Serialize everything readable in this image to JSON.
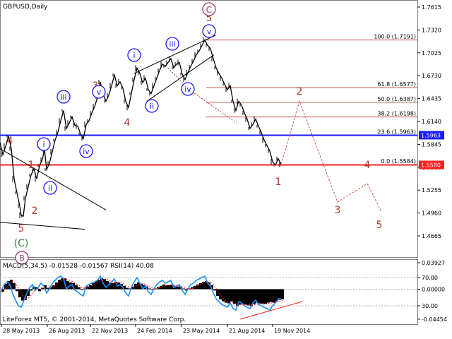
{
  "chart_data": [
    {
      "type": "line",
      "symbol_label": "GBPUSD,Daily",
      "price_axis": {
        "ticks": [
          "1.7615",
          "1.7320",
          "1.7025",
          "1.6730",
          "1.6435",
          "1.6140",
          "1.5845",
          "1.5550",
          "1.5255",
          "1.4960",
          "1.4665"
        ],
        "ylim": [
          1.444,
          1.775
        ]
      },
      "current_price_tags": [
        {
          "value": "1.5963",
          "color": "#1a1aff"
        },
        {
          "value": "1.5580",
          "color": "#ff2020"
        }
      ],
      "fibonacci_levels": [
        {
          "label": "100.0 (1.7191)",
          "price": 1.7191
        },
        {
          "label": "61.8 (1.6577)",
          "price": 1.6577
        },
        {
          "label": "50.0 (1.6387)",
          "price": 1.6387
        },
        {
          "label": "38.2 (1.6198)",
          "price": 1.6198
        },
        {
          "label": "23.6 (1.5963)",
          "price": 1.5963
        },
        {
          "label": "0.0 (1.5584)",
          "price": 1.5584
        }
      ],
      "wave_labels_primary": [
        {
          "text": "C",
          "style": "circled",
          "color": "#993366"
        },
        {
          "text": "(C)",
          "style": "plain",
          "color": "#2e8b2e"
        },
        {
          "text": "B",
          "style": "circled",
          "color": "#993366"
        }
      ],
      "wave_labels_intermediate": [
        "4",
        "1",
        "5",
        "2",
        "3",
        "5",
        "1",
        "2",
        "3",
        "4",
        "5"
      ],
      "wave_labels_minor": [
        "i",
        "ii",
        "iii",
        "iv",
        "v",
        "i",
        "ii",
        "iii",
        "iv",
        "v"
      ],
      "price_path": [
        [
          0,
          1.587
        ],
        [
          4,
          1.571
        ],
        [
          8,
          1.582
        ],
        [
          12,
          1.595
        ],
        [
          16,
          1.579
        ],
        [
          20,
          1.54
        ],
        [
          24,
          1.522
        ],
        [
          28,
          1.505
        ],
        [
          30,
          1.493
        ],
        [
          33,
          1.492
        ],
        [
          36,
          1.515
        ],
        [
          40,
          1.53
        ],
        [
          44,
          1.545
        ],
        [
          48,
          1.553
        ],
        [
          52,
          1.54
        ],
        [
          56,
          1.557
        ],
        [
          60,
          1.565
        ],
        [
          63,
          1.578
        ],
        [
          66,
          1.552
        ],
        [
          70,
          1.56
        ],
        [
          74,
          1.575
        ],
        [
          78,
          1.59
        ],
        [
          82,
          1.6
        ],
        [
          86,
          1.615
        ],
        [
          90,
          1.628
        ],
        [
          94,
          1.605
        ],
        [
          98,
          1.612
        ],
        [
          102,
          1.62
        ],
        [
          106,
          1.609
        ],
        [
          110,
          1.608
        ],
        [
          114,
          1.598
        ],
        [
          118,
          1.592
        ],
        [
          122,
          1.61
        ],
        [
          126,
          1.615
        ],
        [
          130,
          1.625
        ],
        [
          134,
          1.633
        ],
        [
          138,
          1.645
        ],
        [
          142,
          1.665
        ],
        [
          146,
          1.65
        ],
        [
          150,
          1.64
        ],
        [
          154,
          1.648
        ],
        [
          158,
          1.66
        ],
        [
          162,
          1.674
        ],
        [
          166,
          1.66
        ],
        [
          170,
          1.665
        ],
        [
          174,
          1.657
        ],
        [
          178,
          1.64
        ],
        [
          182,
          1.632
        ],
        [
          186,
          1.65
        ],
        [
          190,
          1.668
        ],
        [
          194,
          1.683
        ],
        [
          198,
          1.676
        ],
        [
          202,
          1.664
        ],
        [
          206,
          1.67
        ],
        [
          210,
          1.655
        ],
        [
          214,
          1.65
        ],
        [
          218,
          1.66
        ],
        [
          222,
          1.67
        ],
        [
          226,
          1.68
        ],
        [
          230,
          1.688
        ],
        [
          234,
          1.685
        ],
        [
          238,
          1.69
        ],
        [
          242,
          1.695
        ],
        [
          246,
          1.683
        ],
        [
          250,
          1.688
        ],
        [
          254,
          1.69
        ],
        [
          258,
          1.675
        ],
        [
          262,
          1.668
        ],
        [
          266,
          1.677
        ],
        [
          270,
          1.685
        ],
        [
          274,
          1.692
        ],
        [
          278,
          1.7
        ],
        [
          282,
          1.705
        ],
        [
          286,
          1.712
        ],
        [
          290,
          1.719
        ],
        [
          294,
          1.712
        ],
        [
          298,
          1.708
        ],
        [
          302,
          1.695
        ],
        [
          306,
          1.683
        ],
        [
          310,
          1.676
        ],
        [
          314,
          1.67
        ],
        [
          318,
          1.662
        ],
        [
          322,
          1.655
        ],
        [
          326,
          1.66
        ],
        [
          330,
          1.64
        ],
        [
          334,
          1.628
        ],
        [
          338,
          1.64
        ],
        [
          342,
          1.635
        ],
        [
          346,
          1.625
        ],
        [
          350,
          1.617
        ],
        [
          354,
          1.605
        ],
        [
          358,
          1.61
        ],
        [
          362,
          1.617
        ],
        [
          366,
          1.608
        ],
        [
          370,
          1.6
        ],
        [
          374,
          1.59
        ],
        [
          378,
          1.583
        ],
        [
          382,
          1.576
        ],
        [
          386,
          1.562
        ],
        [
          390,
          1.558
        ],
        [
          394,
          1.566
        ],
        [
          398,
          1.559
        ]
      ],
      "projection_path": [
        [
          398,
          1.559
        ],
        [
          424,
          1.64
        ],
        [
          478,
          1.51
        ],
        [
          520,
          1.534
        ],
        [
          540,
          1.498
        ]
      ]
    },
    {
      "type": "line",
      "indicator_label": "MACD(5,34,5) -0.01528 -0.01567 RSI(14) 40.08",
      "axis_ticks": [
        "0.03927",
        "70.00",
        "0.00000",
        "30.00",
        "-0.04454"
      ],
      "macd_histogram": [
        [
          2,
          -0.004
        ],
        [
          6,
          0.008
        ],
        [
          10,
          0.012
        ],
        [
          14,
          0.014
        ],
        [
          18,
          0.009
        ],
        [
          22,
          -0.003
        ],
        [
          26,
          -0.012
        ],
        [
          30,
          -0.017
        ],
        [
          34,
          -0.016
        ],
        [
          38,
          -0.01
        ],
        [
          42,
          -0.002
        ],
        [
          46,
          0.004
        ],
        [
          50,
          0.003
        ],
        [
          54,
          -0.003
        ],
        [
          58,
          0.002
        ],
        [
          62,
          0.006
        ],
        [
          66,
          0.002
        ],
        [
          70,
          0.003
        ],
        [
          74,
          0.006
        ],
        [
          78,
          0.01
        ],
        [
          82,
          0.014
        ],
        [
          86,
          0.016
        ],
        [
          90,
          0.016
        ],
        [
          94,
          0.012
        ],
        [
          98,
          0.01
        ],
        [
          102,
          0.009
        ],
        [
          106,
          0.006
        ],
        [
          110,
          0.003
        ],
        [
          114,
          -0.001
        ],
        [
          118,
          0.001
        ],
        [
          122,
          0.004
        ],
        [
          126,
          0.006
        ],
        [
          130,
          0.009
        ],
        [
          134,
          0.012
        ],
        [
          138,
          0.014
        ],
        [
          142,
          0.016
        ],
        [
          146,
          0.015
        ],
        [
          150,
          0.012
        ],
        [
          154,
          0.01
        ],
        [
          158,
          0.009
        ],
        [
          162,
          0.011
        ],
        [
          166,
          0.01
        ],
        [
          170,
          0.008
        ],
        [
          174,
          0.005
        ],
        [
          178,
          0.002
        ],
        [
          182,
          0.001
        ],
        [
          186,
          0.004
        ],
        [
          190,
          0.008
        ],
        [
          194,
          0.01
        ],
        [
          198,
          0.008
        ],
        [
          202,
          0.006
        ],
        [
          206,
          0.004
        ],
        [
          210,
          0.001
        ],
        [
          214,
          -0.001
        ],
        [
          218,
          0.001
        ],
        [
          222,
          0.003
        ],
        [
          226,
          0.005
        ],
        [
          230,
          0.007
        ],
        [
          234,
          0.006
        ],
        [
          238,
          0.006
        ],
        [
          242,
          0.007
        ],
        [
          246,
          0.005
        ],
        [
          250,
          0.004
        ],
        [
          254,
          0.004
        ],
        [
          258,
          0.001
        ],
        [
          262,
          -0.002
        ],
        [
          266,
          0.001
        ],
        [
          270,
          0.003
        ],
        [
          274,
          0.005
        ],
        [
          278,
          0.007
        ],
        [
          282,
          0.009
        ],
        [
          286,
          0.011
        ],
        [
          290,
          0.012
        ],
        [
          294,
          0.01
        ],
        [
          298,
          0.006
        ],
        [
          302,
          -0.002
        ],
        [
          306,
          -0.01
        ],
        [
          310,
          -0.015
        ],
        [
          314,
          -0.018
        ],
        [
          318,
          -0.02
        ],
        [
          322,
          -0.021
        ],
        [
          326,
          -0.018
        ],
        [
          330,
          -0.022
        ],
        [
          334,
          -0.025
        ],
        [
          338,
          -0.023
        ],
        [
          342,
          -0.022
        ],
        [
          346,
          -0.023
        ],
        [
          350,
          -0.024
        ],
        [
          354,
          -0.025
        ],
        [
          358,
          -0.022
        ],
        [
          362,
          -0.02
        ],
        [
          366,
          -0.021
        ],
        [
          370,
          -0.022
        ],
        [
          374,
          -0.022
        ],
        [
          378,
          -0.02
        ],
        [
          382,
          -0.019
        ],
        [
          386,
          -0.02
        ],
        [
          390,
          -0.018
        ],
        [
          394,
          -0.016
        ],
        [
          398,
          -0.015
        ]
      ],
      "rsi_path": [
        [
          2,
          52
        ],
        [
          6,
          60
        ],
        [
          10,
          64
        ],
        [
          14,
          60
        ],
        [
          18,
          47
        ],
        [
          22,
          38
        ],
        [
          26,
          30
        ],
        [
          30,
          28
        ],
        [
          34,
          38
        ],
        [
          38,
          48
        ],
        [
          42,
          56
        ],
        [
          46,
          60
        ],
        [
          50,
          52
        ],
        [
          54,
          56
        ],
        [
          58,
          62
        ],
        [
          62,
          58
        ],
        [
          66,
          48
        ],
        [
          70,
          54
        ],
        [
          74,
          62
        ],
        [
          78,
          66
        ],
        [
          82,
          70
        ],
        [
          86,
          72
        ],
        [
          90,
          68
        ],
        [
          94,
          54
        ],
        [
          98,
          58
        ],
        [
          102,
          60
        ],
        [
          106,
          52
        ],
        [
          110,
          50
        ],
        [
          114,
          46
        ],
        [
          118,
          44
        ],
        [
          122,
          58
        ],
        [
          126,
          60
        ],
        [
          130,
          62
        ],
        [
          134,
          64
        ],
        [
          138,
          66
        ],
        [
          142,
          72
        ],
        [
          146,
          62
        ],
        [
          150,
          56
        ],
        [
          154,
          60
        ],
        [
          158,
          64
        ],
        [
          162,
          68
        ],
        [
          166,
          58
        ],
        [
          170,
          60
        ],
        [
          174,
          56
        ],
        [
          178,
          48
        ],
        [
          182,
          44
        ],
        [
          186,
          56
        ],
        [
          190,
          64
        ],
        [
          194,
          70
        ],
        [
          198,
          62
        ],
        [
          202,
          54
        ],
        [
          206,
          58
        ],
        [
          210,
          50
        ],
        [
          214,
          46
        ],
        [
          218,
          54
        ],
        [
          222,
          60
        ],
        [
          226,
          64
        ],
        [
          230,
          66
        ],
        [
          234,
          62
        ],
        [
          238,
          64
        ],
        [
          242,
          66
        ],
        [
          246,
          56
        ],
        [
          250,
          58
        ],
        [
          254,
          60
        ],
        [
          258,
          52
        ],
        [
          262,
          46
        ],
        [
          266,
          54
        ],
        [
          270,
          60
        ],
        [
          274,
          62
        ],
        [
          278,
          66
        ],
        [
          282,
          68
        ],
        [
          286,
          70
        ],
        [
          290,
          72
        ],
        [
          294,
          62
        ],
        [
          298,
          58
        ],
        [
          302,
          48
        ],
        [
          306,
          40
        ],
        [
          310,
          36
        ],
        [
          314,
          32
        ],
        [
          318,
          30
        ],
        [
          322,
          28
        ],
        [
          326,
          34
        ],
        [
          330,
          26
        ],
        [
          334,
          24
        ],
        [
          338,
          36
        ],
        [
          342,
          34
        ],
        [
          346,
          30
        ],
        [
          350,
          28
        ],
        [
          354,
          26
        ],
        [
          358,
          34
        ],
        [
          362,
          38
        ],
        [
          366,
          32
        ],
        [
          370,
          30
        ],
        [
          374,
          28
        ],
        [
          378,
          26
        ],
        [
          382,
          24
        ],
        [
          386,
          30
        ],
        [
          390,
          34
        ],
        [
          394,
          40
        ],
        [
          398,
          40
        ]
      ],
      "footer_text": "LiteForex MT5, © 2001-2014, MetaQuotes Software Corp."
    }
  ],
  "time_axis": {
    "labels": [
      "28 May 2013",
      "26 Aug 2013",
      "22 Nov 2013",
      "24 Feb 2014",
      "23 May 2014",
      "21 Aug 2014",
      "19 Nov 2014"
    ]
  },
  "colors": {
    "price": "#000000",
    "wave_red": "#b03a2e",
    "wave_blue": "#1a1aff",
    "fib_line": "#c85a5a",
    "support_line": "#ff2020",
    "resistance_line": "#1a1aff",
    "projection": "#c85a5a",
    "macd_hist": "#000000",
    "rsi": "#1e90ff",
    "divergence": "#ff2020"
  }
}
